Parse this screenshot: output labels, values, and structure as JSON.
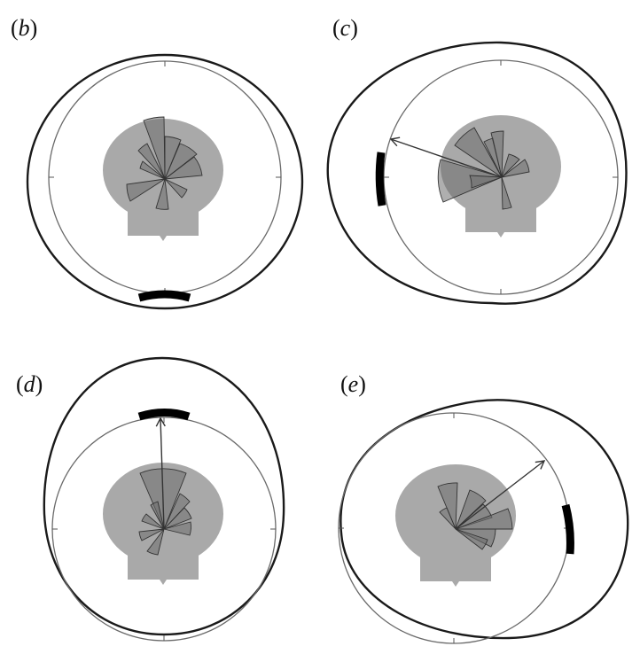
{
  "panels": [
    {
      "id": "b",
      "label_open": "(",
      "label_letter": "b",
      "label_close": ")",
      "has_arrow": false
    },
    {
      "id": "c",
      "label_open": "(",
      "label_letter": "c",
      "label_close": ")",
      "has_arrow": true
    },
    {
      "id": "d",
      "label_open": "(",
      "label_letter": "d",
      "label_close": ")",
      "has_arrow": true
    },
    {
      "id": "e",
      "label_open": "(",
      "label_letter": "e",
      "label_close": ")",
      "has_arrow": true
    }
  ],
  "colors": {
    "outer_stroke": "#1a1a1a",
    "inner_stroke": "#6a6a6a",
    "head_fill": "#a9a9a9",
    "petal_fill": "#6e6e6e",
    "stimulus_bar": "#000000",
    "arrow": "#333333"
  }
}
